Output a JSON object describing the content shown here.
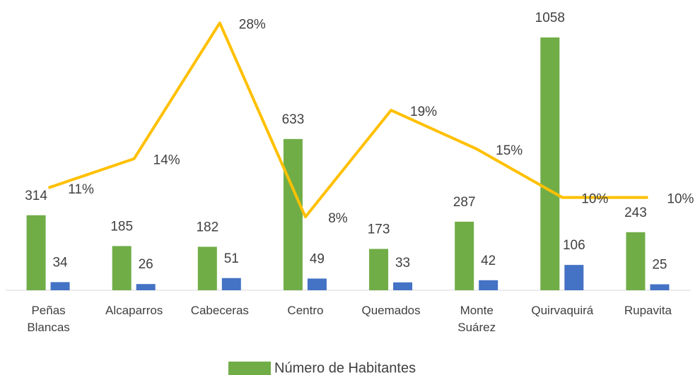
{
  "chart_data": {
    "type": "bar",
    "categories": [
      "Peñas Blancas",
      "Alcaparros",
      "Cabeceras",
      "Centro",
      "Quemados",
      "Monte Suárez",
      "Quirvaquirá",
      "Rupavita"
    ],
    "series": [
      {
        "name": "Número de Habitantes",
        "color": "#70ad47",
        "values": [
          314,
          185,
          182,
          633,
          173,
          287,
          1058,
          243
        ]
      },
      {
        "color": "#4472c4",
        "values": [
          34,
          26,
          51,
          49,
          33,
          42,
          106,
          25
        ]
      },
      {
        "type": "line",
        "axis": "y2",
        "color": "#ffc000",
        "values": [
          11,
          14,
          28,
          8,
          19,
          15,
          10,
          10
        ],
        "value_labels": [
          "11%",
          "14%",
          "28%",
          "8%",
          "19%",
          "15%",
          "10%",
          "10%"
        ]
      }
    ],
    "ylim": [
      0,
      1200
    ],
    "y2lim": [
      0,
      30
    ],
    "legend": "bottom"
  }
}
